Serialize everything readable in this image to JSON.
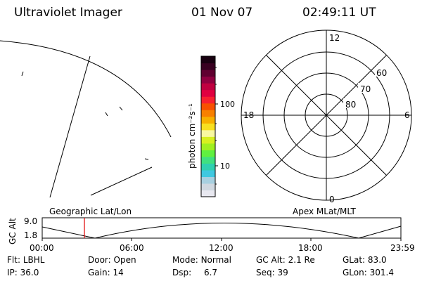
{
  "header": {
    "title": "Ultraviolet Imager",
    "date": "01 Nov 07",
    "time": "02:49:11 UT"
  },
  "colorbar": {
    "unit_label": "photon cm⁻²s⁻¹",
    "tick_labels": [
      "100",
      "10"
    ],
    "colors": [
      "#e8e8f0",
      "#d0d8e0",
      "#a8d0e0",
      "#40c8e0",
      "#30d0b0",
      "#40e080",
      "#60f040",
      "#a0f020",
      "#d8f020",
      "#f8f8a0",
      "#f8e020",
      "#f8b000",
      "#f88000",
      "#f85000",
      "#f82030",
      "#e00040",
      "#c00040",
      "#900040",
      "#600030",
      "#380020",
      "#180010"
    ]
  },
  "polar_plot": {
    "clock_labels": {
      "top": "12",
      "left": "18",
      "right": "6",
      "bottom": "0"
    },
    "lat_labels": [
      "60",
      "70",
      "80"
    ]
  },
  "altitude_strip": {
    "axis_label": "GC Alt",
    "y_ticks": [
      "9.0",
      "1.8"
    ],
    "left_title": "Geographic Lat/Lon",
    "right_title": "Apex MLat/MLT",
    "x_ticks": [
      "00:00",
      "06:00",
      "12:00",
      "18:00",
      "23:59"
    ],
    "marker_color": "#e00000"
  },
  "status": {
    "row1": [
      {
        "key": "Flt:",
        "value": "LBHL"
      },
      {
        "key": "Door:",
        "value": "Open"
      },
      {
        "key": "Mode:",
        "value": "Normal"
      },
      {
        "key": "GC Alt:",
        "value": "2.1 Re"
      },
      {
        "key": "GLat:",
        "value": "83.0"
      }
    ],
    "row2": [
      {
        "key": "IP:",
        "value": "36.0"
      },
      {
        "key": "Gain:",
        "value": "14"
      },
      {
        "key": "Dsp:",
        "value": "6.7"
      },
      {
        "key": "Seq:",
        "value": "39"
      },
      {
        "key": "GLon:",
        "value": "301.4"
      }
    ]
  }
}
